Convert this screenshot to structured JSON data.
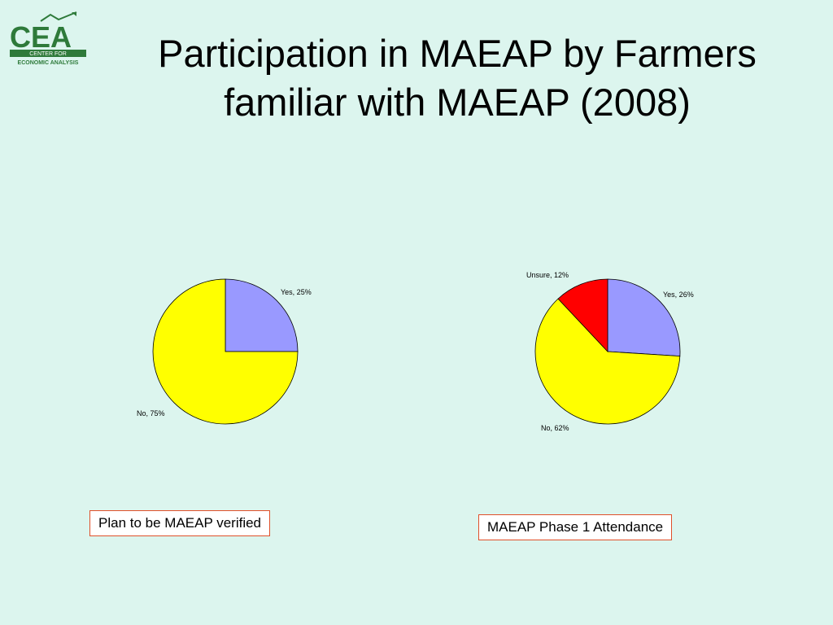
{
  "logo": {
    "letters": "CEA",
    "line1": "CENTER FOR",
    "line2": "ECONOMIC ANALYSIS",
    "colors": {
      "brand_green": "#2e7a3a",
      "accent_orange": "#e0a13a"
    }
  },
  "title": {
    "line1": "Participation in MAEAP by Farmers",
    "line2": "familiar with MAEAP (2008)"
  },
  "chart_data": [
    {
      "type": "pie",
      "caption": "Plan to be MAEAP verified",
      "slices": [
        {
          "label": "Yes, 25%",
          "value": 25,
          "color": "#9999ff"
        },
        {
          "label": "No, 75%",
          "value": 75,
          "color": "#ffff00"
        }
      ]
    },
    {
      "type": "pie",
      "caption": "MAEAP Phase 1 Attendance",
      "slices": [
        {
          "label": "Yes, 26%",
          "value": 26,
          "color": "#9999ff"
        },
        {
          "label": "No, 62%",
          "value": 62,
          "color": "#ffff00"
        },
        {
          "label": "Unsure, 12%",
          "value": 12,
          "color": "#ff0000"
        }
      ]
    }
  ]
}
